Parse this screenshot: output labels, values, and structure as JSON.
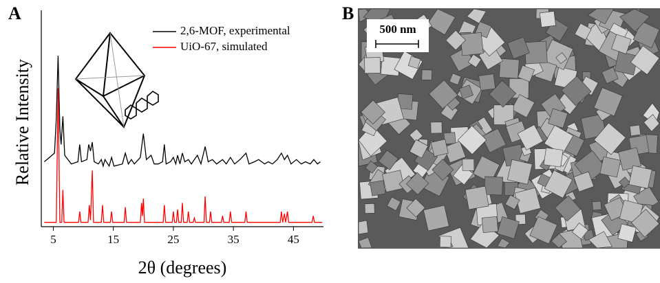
{
  "panels": [
    "A",
    "B"
  ],
  "chart_data": {
    "type": "line",
    "xlabel": "2θ (degrees)",
    "ylabel": "Relative Intensity",
    "xlim": [
      3,
      50
    ],
    "ylim": [
      0,
      100
    ],
    "xticks": [
      5,
      15,
      25,
      35,
      45
    ],
    "legend": "upper right",
    "series": [
      {
        "name": "2,6-MOF, experimental",
        "color": "#000000",
        "x": [
          3.5,
          5.2,
          5.5,
          5.8,
          6.1,
          6.3,
          6.6,
          6.9,
          8,
          9.1,
          9.4,
          9.7,
          10.6,
          10.9,
          11.2,
          11.5,
          11.8,
          12.5,
          13,
          13.3,
          13.6,
          14.3,
          14.7,
          15.1,
          16.5,
          17,
          17.5,
          18,
          18.5,
          19.5,
          20,
          20.5,
          21.3,
          21.8,
          22.5,
          23.2,
          23.5,
          23.8,
          24.5,
          25,
          25.4,
          25.7,
          26.1,
          26.5,
          26.9,
          27.5,
          28,
          28.5,
          29,
          29.6,
          30.3,
          30.8,
          31.5,
          32.2,
          33.2,
          33.8,
          34.5,
          35.2,
          36.1,
          37.1,
          37.6,
          38.5,
          39.2,
          40.2,
          40.8,
          41.5,
          42.3,
          43,
          43.5,
          44,
          44.6,
          45.5,
          46.3,
          47,
          47.8,
          48.4,
          49,
          49.5
        ],
        "values": [
          30,
          34,
          50,
          79,
          45,
          38,
          51,
          33,
          29,
          30,
          38,
          30,
          31,
          38,
          35,
          39,
          30,
          29,
          31,
          28,
          31,
          28,
          32,
          28,
          29,
          34,
          29,
          31,
          29,
          32,
          43,
          31,
          33,
          29,
          29,
          30,
          38,
          29,
          30,
          32,
          29,
          33,
          29,
          34,
          30,
          31,
          29,
          31,
          33,
          29,
          37,
          30,
          31,
          29,
          31,
          29,
          32,
          29,
          31,
          34,
          29,
          30,
          31,
          29,
          30,
          29,
          31,
          34,
          31,
          33,
          29,
          31,
          29,
          30,
          29,
          31,
          29,
          30
        ]
      },
      {
        "name": "UiO-67, simulated",
        "color": "#ff0000",
        "x": [
          3.5,
          5.5,
          5.8,
          6.1,
          6.4,
          6.6,
          6.8,
          9.2,
          9.4,
          9.6,
          10.8,
          11,
          11.2,
          11.5,
          11.7,
          13,
          13.2,
          13.4,
          14.5,
          14.7,
          14.9,
          16.8,
          17,
          17.2,
          19.5,
          19.7,
          19.85,
          20,
          20.2,
          23.3,
          23.5,
          23.7,
          24.8,
          25,
          25.2,
          25.5,
          25.7,
          25.9,
          26.3,
          26.5,
          26.7,
          27.3,
          27.5,
          27.7,
          28.3,
          28.5,
          28.7,
          30.1,
          30.3,
          30.5,
          31,
          31.2,
          31.4,
          33,
          33.2,
          33.4,
          34.3,
          34.5,
          34.7,
          36.9,
          37.1,
          37.3,
          42.8,
          43,
          43.2,
          43.5,
          43.7,
          44,
          44.2,
          48.1,
          48.3,
          48.5,
          49.8
        ],
        "values": [
          2,
          2,
          64,
          2,
          2,
          17,
          2,
          2,
          7,
          2,
          2,
          10,
          3,
          26,
          2,
          2,
          10,
          2,
          2,
          7,
          2,
          2,
          9,
          2,
          2,
          11,
          5,
          13,
          2,
          2,
          10,
          2,
          2,
          7,
          2,
          2,
          8,
          2,
          2,
          11,
          2,
          2,
          7,
          2,
          2,
          4,
          2,
          2,
          14,
          2,
          2,
          7,
          2,
          2,
          5,
          2,
          2,
          7,
          2,
          2,
          7,
          2,
          2,
          7,
          2,
          6,
          2,
          7,
          2,
          2,
          5,
          2,
          2
        ]
      }
    ]
  },
  "image": {
    "scale_bar": "500 nm"
  }
}
